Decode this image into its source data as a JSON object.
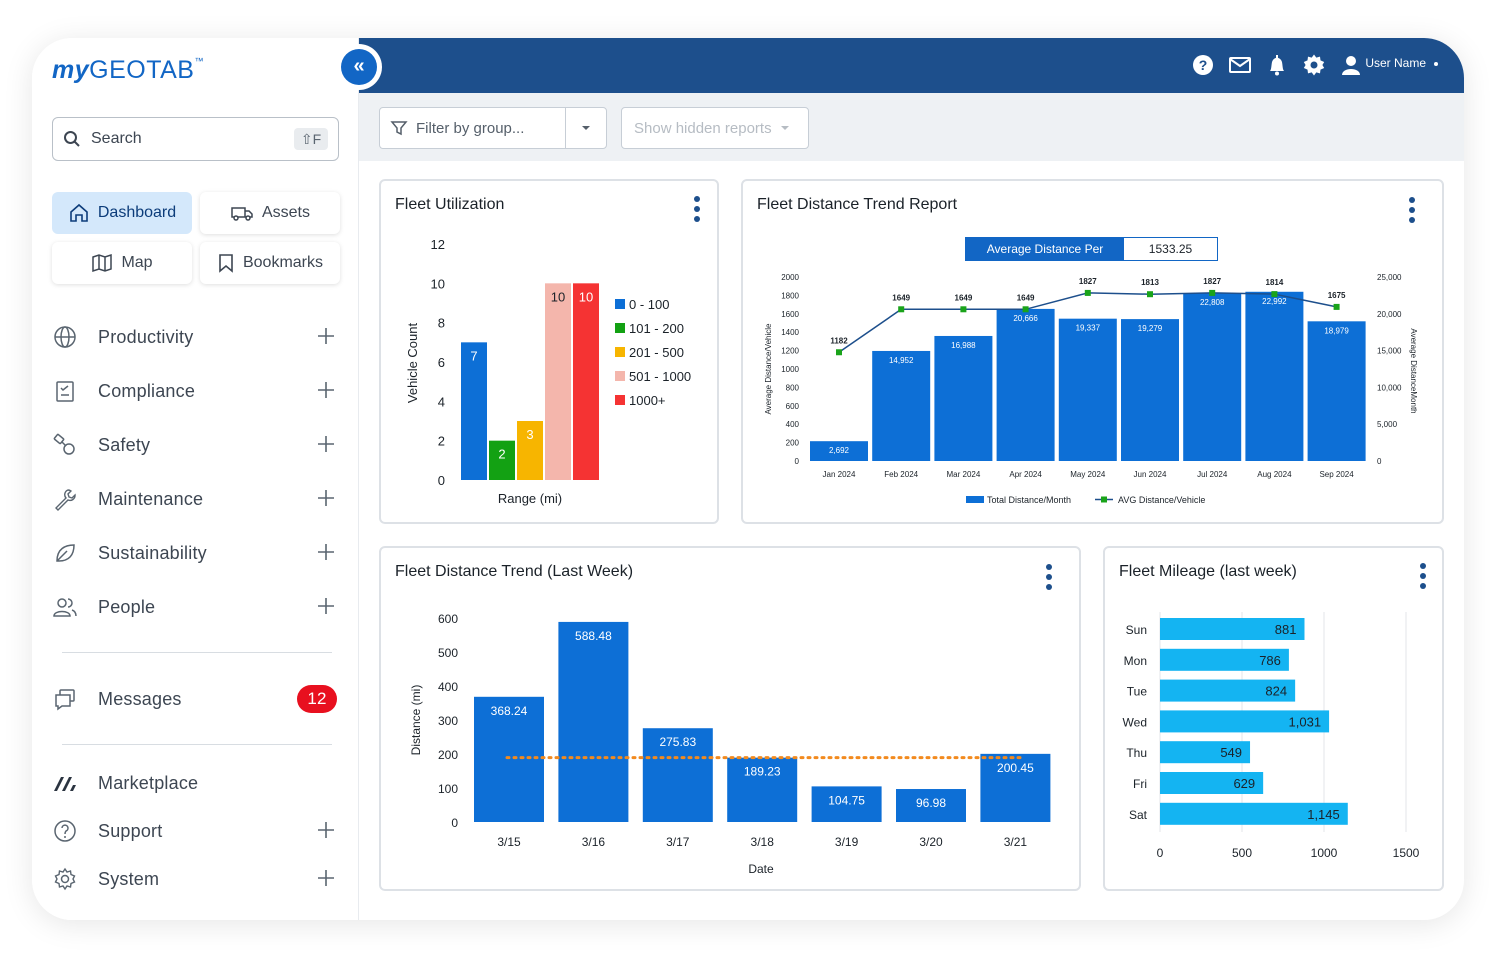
{
  "brand": {
    "logo_my": "my",
    "logo_geotab": "GEOTAB",
    "logo_tm": "™"
  },
  "search": {
    "label": "Search",
    "shortcut": "⇧F"
  },
  "quick_links": [
    {
      "label": "Dashboard",
      "active": true
    },
    {
      "label": "Assets"
    },
    {
      "label": "Map"
    },
    {
      "label": "Bookmarks"
    }
  ],
  "nav": {
    "productivity": "Productivity",
    "compliance": "Compliance",
    "safety": "Safety",
    "maintenance": "Maintenance",
    "sustainability": "Sustainability",
    "people": "People",
    "messages": "Messages",
    "messages_count": "12",
    "marketplace": "Marketplace",
    "support": "Support",
    "system": "System"
  },
  "header": {
    "collapse_glyph": "«",
    "username": "User Name"
  },
  "filters": {
    "group_placeholder": "Filter by group...",
    "hidden_reports": "Show hidden reports"
  },
  "colors": {
    "brand_blue": "#1266c5",
    "header_navy": "#1d4f8c",
    "bar_blue": "#0d6fd6",
    "light_blue": "#14b4f2",
    "badge_red": "#e8101f",
    "avg_orange": "#f28a1e",
    "avg_green": "#1aa31a"
  },
  "cards": {
    "utilization": {
      "title": "Fleet Utilization"
    },
    "trend_report": {
      "title": "Fleet Distance Trend Report",
      "avg_label": "Average Distance Per Vehicle",
      "avg_value": "1533.25"
    },
    "last_week": {
      "title": "Fleet Distance Trend (Last Week)"
    },
    "mileage": {
      "title": "Fleet Mileage (last week)"
    }
  },
  "chart_data": [
    {
      "type": "bar",
      "title": "Fleet Utilization",
      "xlabel": "Range (mi)",
      "ylabel": "Vehicle Count",
      "ylim": [
        0,
        12
      ],
      "yticks": [
        "0",
        "2",
        "4",
        "6",
        "8",
        "10",
        "12"
      ],
      "legend_position": "right",
      "series": [
        {
          "name": "0 - 100",
          "value": 7,
          "label": "7",
          "color": "#0d6fd6"
        },
        {
          "name": "101 - 200",
          "value": 2,
          "label": "2",
          "color": "#13a113"
        },
        {
          "name": "201 - 500",
          "value": 3,
          "label": "3",
          "color": "#f7b500"
        },
        {
          "name": "501 - 1000",
          "value": 10,
          "label": "10",
          "color": "#f4b6ac"
        },
        {
          "name": "1000+",
          "value": 10,
          "label": "10",
          "color": "#f53333"
        }
      ]
    },
    {
      "type": "bar",
      "title": "Fleet Distance Trend Report",
      "categories": [
        "Jan 2024",
        "Feb 2024",
        "Mar 2024",
        "Apr 2024",
        "May 2024",
        "Jun 2024",
        "Jul 2024",
        "Aug 2024",
        "Sep 2024"
      ],
      "ylabel_left": "Average Distance/Vehicle",
      "ylabel_right": "Average DistanceMonth",
      "ylim_left": [
        0,
        2000
      ],
      "yticks_left": [
        "0",
        "200",
        "400",
        "600",
        "800",
        "1000",
        "1200",
        "1400",
        "1600",
        "1800",
        "2000"
      ],
      "ylim_right": [
        0,
        25000
      ],
      "yticks_right": [
        "0",
        "5,000",
        "10,000",
        "15,000",
        "20,000",
        "25,000"
      ],
      "legend_position": "bottom",
      "series": [
        {
          "name": "Total Distance/Month",
          "type": "bar",
          "axis": "right",
          "values": [
            2692,
            14952,
            16988,
            20666,
            19337,
            19279,
            22808,
            22992,
            18979
          ],
          "labels": [
            "2,692",
            "14,952",
            "16,988",
            "20,666",
            "19,337",
            "19,279",
            "22,808",
            "22,992",
            "18,979"
          ]
        },
        {
          "name": "AVG Distance/Vehicle",
          "type": "line",
          "axis": "left",
          "values": [
            1182,
            1649,
            1649,
            1649,
            1827,
            1813,
            1827,
            1814,
            1675
          ],
          "labels": [
            "1182",
            "1649",
            "1649",
            "1649",
            "1827",
            "1813",
            "1827",
            "1814",
            "1675"
          ]
        }
      ]
    },
    {
      "type": "bar",
      "title": "Fleet Distance Trend (Last Week)",
      "categories": [
        "3/15",
        "3/16",
        "3/17",
        "3/18",
        "3/19",
        "3/20",
        "3/21"
      ],
      "values": [
        368.24,
        588.48,
        275.83,
        189.23,
        104.75,
        96.98,
        200.45
      ],
      "labels": [
        "368.24",
        "588.48",
        "275.83",
        "189.23",
        "104.75",
        "96.98",
        "200.45"
      ],
      "xlabel": "Date",
      "ylabel": "Distance (mi)",
      "ylim": [
        0,
        600
      ],
      "yticks": [
        "0",
        "100",
        "200",
        "300",
        "400",
        "500",
        "600"
      ],
      "average_line": 189.5
    },
    {
      "type": "bar",
      "orientation": "horizontal",
      "title": "Fleet Mileage (last week)",
      "categories": [
        "Sun",
        "Mon",
        "Tue",
        "Wed",
        "Thu",
        "Fri",
        "Sat"
      ],
      "values": [
        881,
        786,
        824,
        1031,
        549,
        629,
        1145
      ],
      "labels": [
        "881",
        "786",
        "824",
        "1,031",
        "549",
        "629",
        "1,145"
      ],
      "xlim": [
        0,
        1500
      ],
      "xticks": [
        "0",
        "500",
        "1000",
        "1500"
      ]
    }
  ]
}
